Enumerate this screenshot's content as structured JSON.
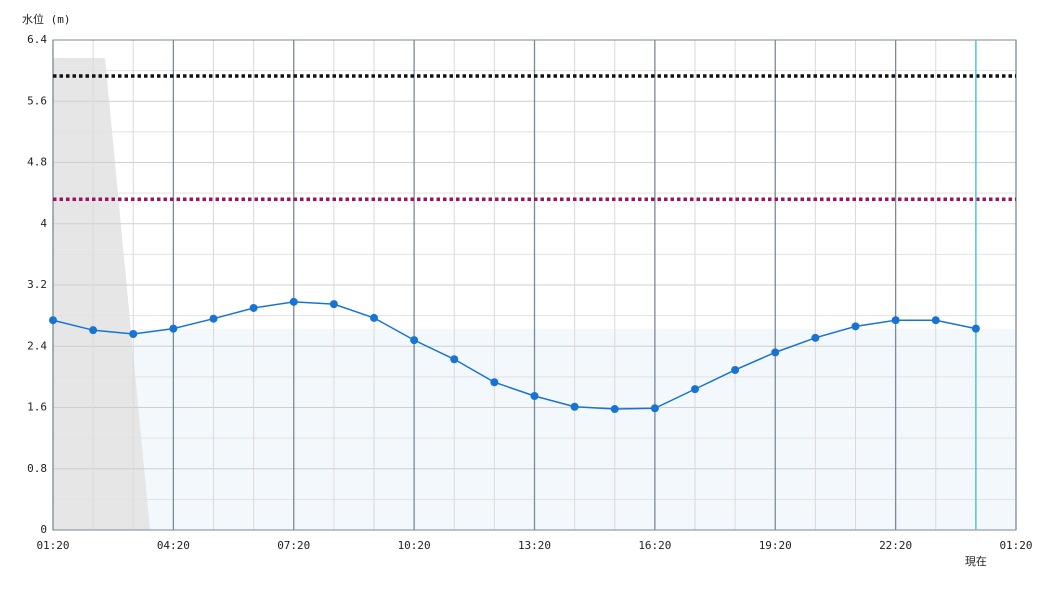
{
  "chart_data": {
    "type": "line",
    "y_label": "水位 (m)",
    "categories": [
      "01:20",
      null,
      null,
      "04:20",
      null,
      null,
      "07:20",
      null,
      null,
      "10:20",
      null,
      null,
      "13:20",
      null,
      null,
      "16:20",
      null,
      null,
      "19:20",
      null,
      null,
      "22:20",
      null,
      null,
      "01:20"
    ],
    "now_label": "現在",
    "series": [
      {
        "color": "#1874d2",
        "values": [
          2.74,
          2.61,
          2.56,
          2.63,
          2.76,
          2.9,
          2.98,
          2.95,
          2.77,
          2.48,
          2.23,
          1.93,
          1.75,
          1.61,
          1.58,
          1.59,
          1.84,
          2.09,
          2.32,
          2.51,
          2.66,
          2.74,
          2.74,
          2.63,
          null
        ]
      }
    ],
    "reference_lines": [
      {
        "value": 5.93,
        "color": "#111111"
      },
      {
        "value": 4.32,
        "color": "#a0105c"
      }
    ],
    "ylim": [
      0,
      6.4
    ],
    "yticks": [
      0,
      0.8,
      1.6,
      2.4,
      3.2,
      4,
      4.8,
      5.6,
      6.4
    ],
    "grid": true
  }
}
